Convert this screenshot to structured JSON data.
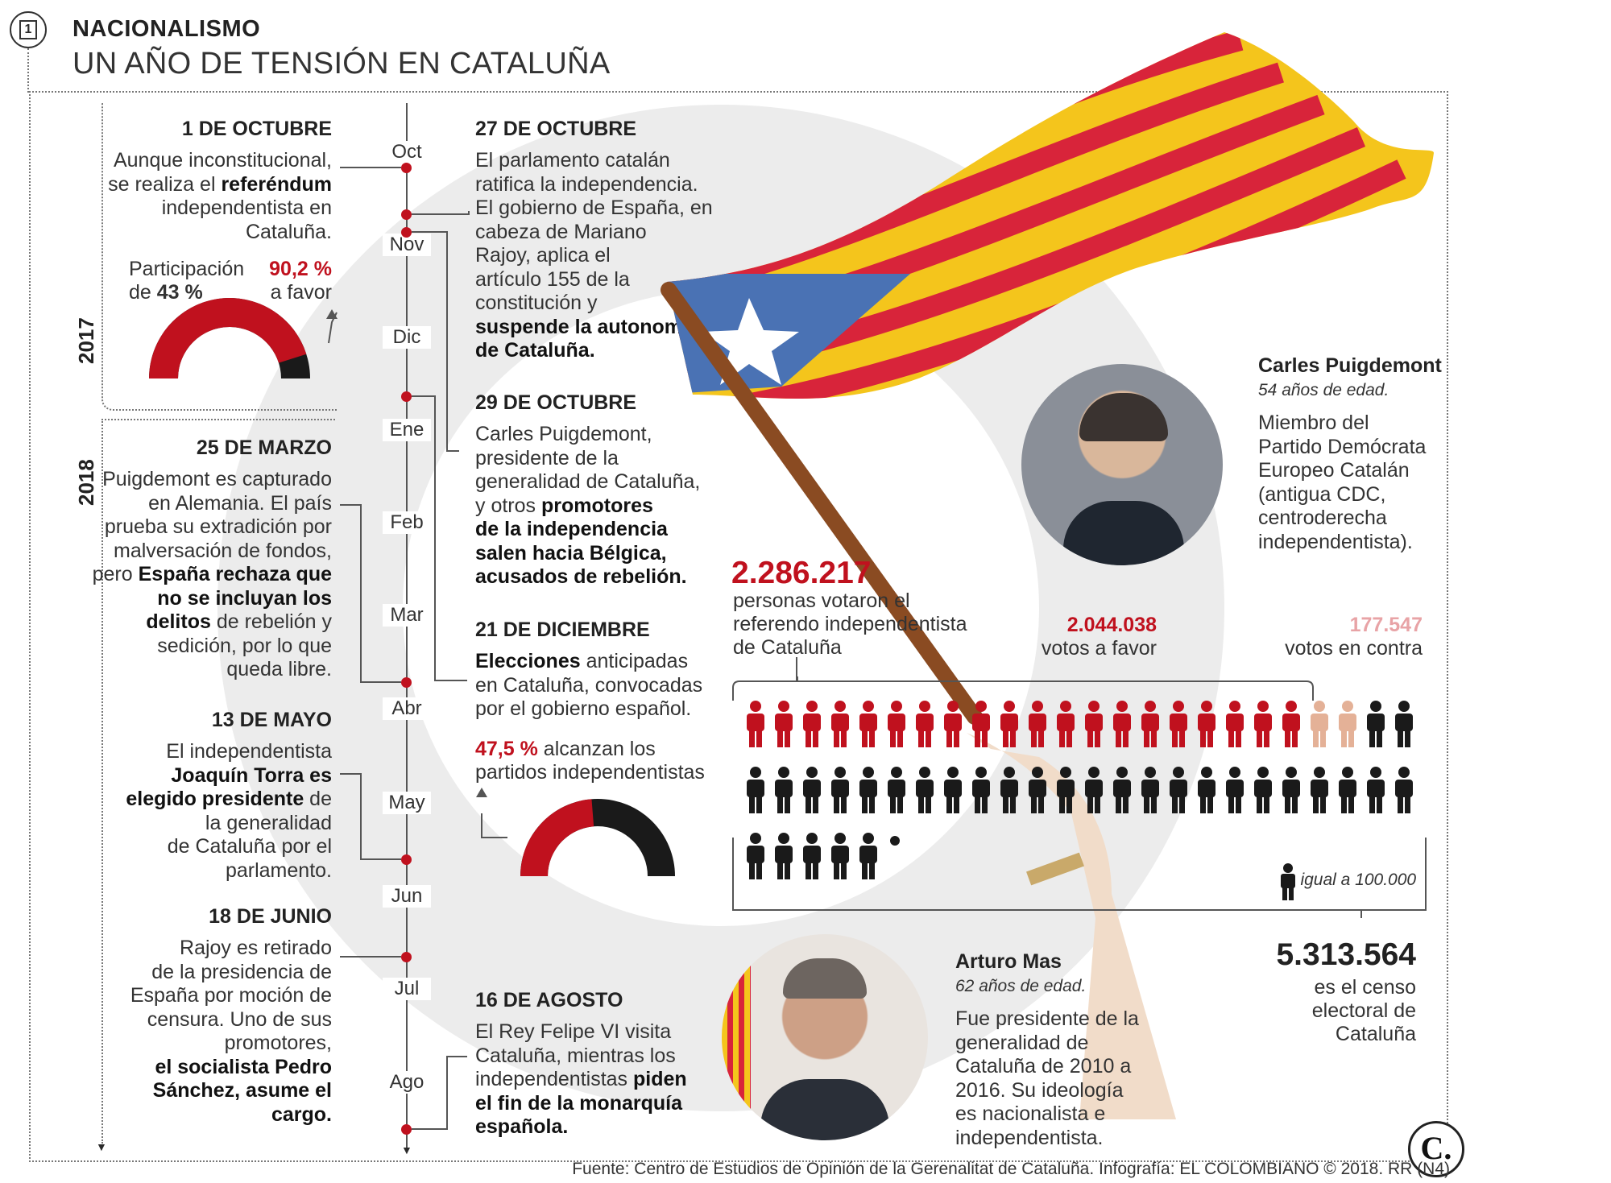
{
  "header": {
    "kicker": "NACIONALISMO",
    "title": "UN AÑO DE TENSIÓN EN CATALUÑA",
    "page_badge": "1"
  },
  "years": {
    "y2017": "2017",
    "y2018": "2018"
  },
  "months": [
    "Oct",
    "Nov",
    "Dic",
    "Ene",
    "Feb",
    "Mar",
    "Abr",
    "May",
    "Jun",
    "Jul",
    "Ago"
  ],
  "events": {
    "oct1": {
      "date": "1 DE OCTUBRE",
      "lines": [
        [
          "Aunque inconstitucional,"
        ],
        [
          "se realiza el ",
          "referéndum"
        ],
        [
          "independentista en"
        ],
        [
          "Cataluña."
        ]
      ]
    },
    "oct27": {
      "date": "27 DE OCTUBRE",
      "lines": [
        [
          "El parlamento catalán"
        ],
        [
          "ratifica la independencia."
        ],
        [
          "El gobierno de España, en"
        ],
        [
          "cabeza de Mariano"
        ],
        [
          "Rajoy, aplica el"
        ],
        [
          "artículo 155 de la"
        ],
        [
          "constitución y"
        ],
        [
          "",
          "suspende la autonomía"
        ],
        [
          "",
          "de Cataluña."
        ]
      ]
    },
    "oct29": {
      "date": "29 DE OCTUBRE",
      "lines": [
        [
          "Carles Puigdemont,"
        ],
        [
          "presidente de la"
        ],
        [
          "generalidad de Cataluña,"
        ],
        [
          "y otros ",
          "promotores"
        ],
        [
          "",
          "de la independencia"
        ],
        [
          "",
          "salen hacia Bélgica,"
        ],
        [
          "",
          "acusados de rebelión."
        ]
      ]
    },
    "dic21": {
      "date": "21 DE DICIEMBRE",
      "lines": [
        [
          "",
          "Elecciones",
          " anticipadas"
        ],
        [
          "en Cataluña, convocadas"
        ],
        [
          "por el gobierno español."
        ]
      ]
    },
    "mar25": {
      "date": "25 DE MARZO",
      "lines": [
        [
          "Puigdemont es capturado"
        ],
        [
          "en Alemania. El país"
        ],
        [
          "prueba su extradición por"
        ],
        [
          "malversación de fondos,"
        ],
        [
          "pero ",
          "España rechaza que"
        ],
        [
          "",
          "no se incluyan los"
        ],
        [
          "",
          "delitos",
          " de rebelión y"
        ],
        [
          "sedición, por lo que"
        ],
        [
          "queda libre."
        ]
      ]
    },
    "may13": {
      "date": "13 DE MAYO",
      "lines": [
        [
          "El independentista"
        ],
        [
          "",
          "Joaquín Torra es"
        ],
        [
          "",
          "elegido presidente",
          " de"
        ],
        [
          "la generalidad"
        ],
        [
          "de Cataluña por el"
        ],
        [
          "parlamento."
        ]
      ]
    },
    "jun18": {
      "date": "18 DE JUNIO",
      "lines": [
        [
          "Rajoy es retirado"
        ],
        [
          "de la presidencia de"
        ],
        [
          "España por moción de"
        ],
        [
          "censura. Uno de sus"
        ],
        [
          "promotores,"
        ],
        [
          "",
          "el socialista Pedro"
        ],
        [
          "",
          "Sánchez, asume el"
        ],
        [
          "",
          "cargo."
        ]
      ]
    },
    "ago16": {
      "date": "16 DE AGOSTO",
      "lines": [
        [
          "El Rey Felipe VI visita"
        ],
        [
          "Cataluña, mientras los"
        ],
        [
          "independentistas ",
          "piden"
        ],
        [
          "",
          "el fin de la monarquía"
        ],
        [
          "",
          "española."
        ]
      ]
    }
  },
  "referendum_gauge": {
    "participation_label": "Participación",
    "participation_prefix": "de ",
    "participation_value": "43 %",
    "favor_value": "90,2 %",
    "favor_label": "a favor",
    "favor_fraction": 0.902
  },
  "election_gauge": {
    "value": "47,5 %",
    "label_1": " alcanzan los",
    "label_2": "partidos independentistas",
    "fraction": 0.475
  },
  "votes": {
    "total": "2.286.217",
    "total_label": [
      "personas votaron el",
      "referendo independentista",
      "de Cataluña"
    ],
    "favor": "2.044.038",
    "favor_label": "votos a favor",
    "contra": "177.547",
    "contra_label": "votos en contra",
    "legend": "igual a 100.000",
    "census": "5.313.564",
    "census_label": [
      "es el censo",
      "electoral de",
      "Cataluña"
    ],
    "icons_red": 20,
    "icons_pink": 2,
    "icons_total": 53,
    "colors": {
      "red": "#c0111e",
      "pink": "#e4b197",
      "black": "#1a1a1a"
    }
  },
  "profiles": {
    "puigdemont": {
      "name": "Carles Puigdemont",
      "age": "54 años de edad.",
      "bio": [
        "Miembro del",
        "Partido Demócrata",
        "Europeo Catalán",
        "(antigua CDC,",
        "centroderecha",
        "independentista)."
      ]
    },
    "mas": {
      "name": "Arturo Mas",
      "age": "62 años de edad.",
      "bio": [
        "Fue presidente de la",
        "generalidad de",
        "Cataluña de 2010 a",
        "2016. Su ideología",
        "es nacionalista e",
        "independentista."
      ]
    }
  },
  "logo": "C.",
  "source": "Fuente: Centro de Estudios de Opinión de la Gerenalitat de Cataluña. Infografía: EL COLOMBIANO © 2018. RR (N4)"
}
